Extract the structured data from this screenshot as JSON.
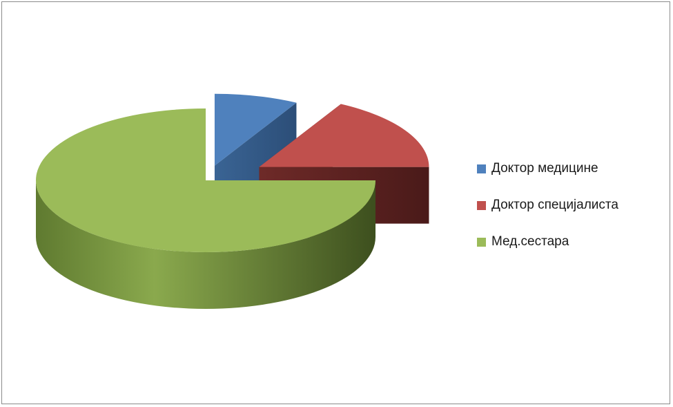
{
  "chart_data": {
    "type": "pie",
    "style": "3d-exploded",
    "categories": [
      "Доктор медицине",
      "Доктор специјалиста",
      "Мед.сестара"
    ],
    "values": [
      8,
      17,
      75
    ],
    "colors": [
      "#4f81bd",
      "#c0504d",
      "#9bbb59"
    ],
    "legend": "right",
    "title": ""
  }
}
